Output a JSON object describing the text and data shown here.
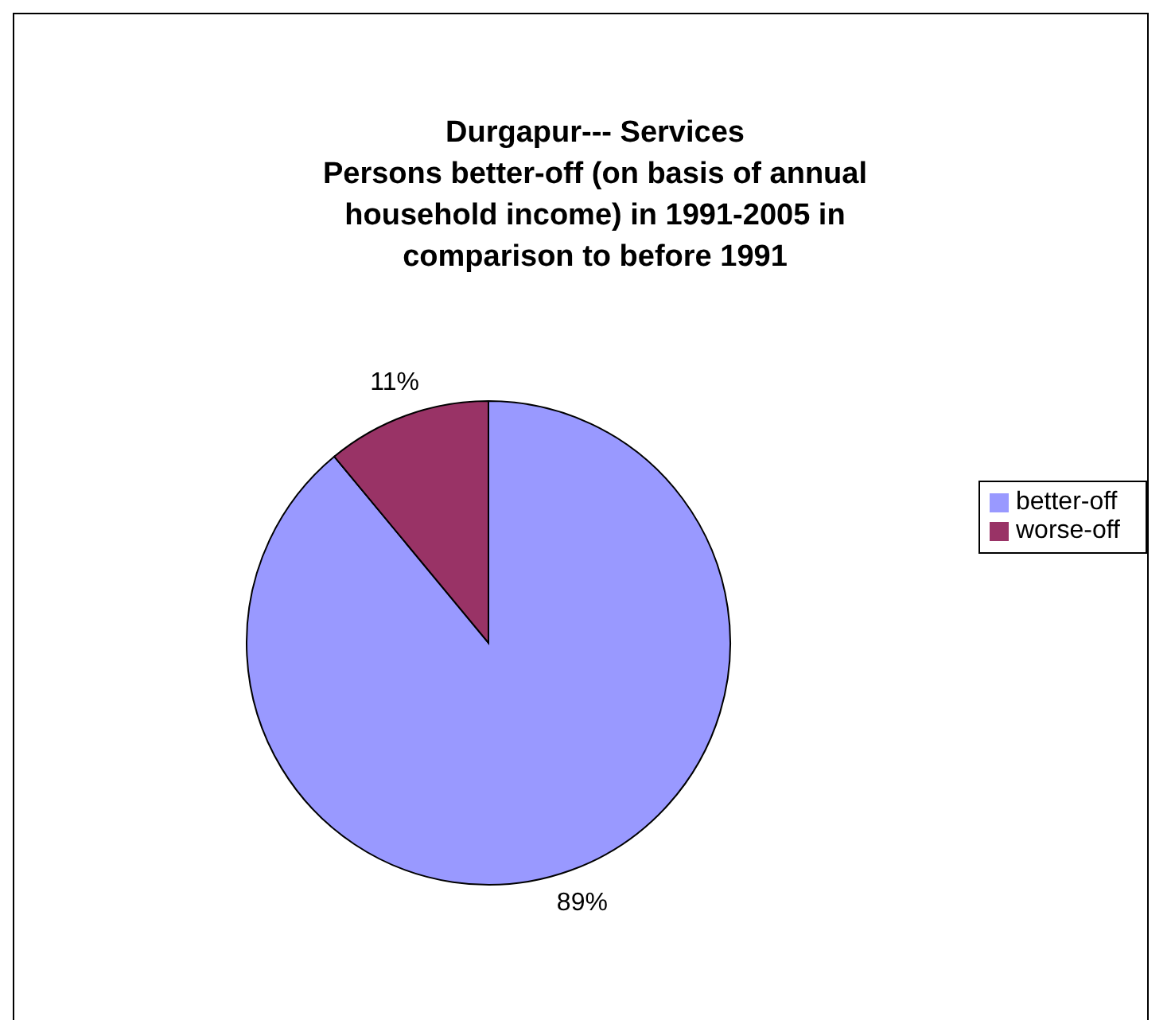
{
  "chart_data": {
    "type": "pie",
    "title": "Durgapur--- Services\nPersons better-off (on basis of annual household income) in 1991-2005 in comparison to before 1991",
    "categories": [
      "better-off",
      "worse-off"
    ],
    "values": [
      89,
      11
    ],
    "colors": [
      "#9999ff",
      "#993366"
    ],
    "value_labels": [
      "89%",
      "11%"
    ],
    "legend": "right"
  }
}
